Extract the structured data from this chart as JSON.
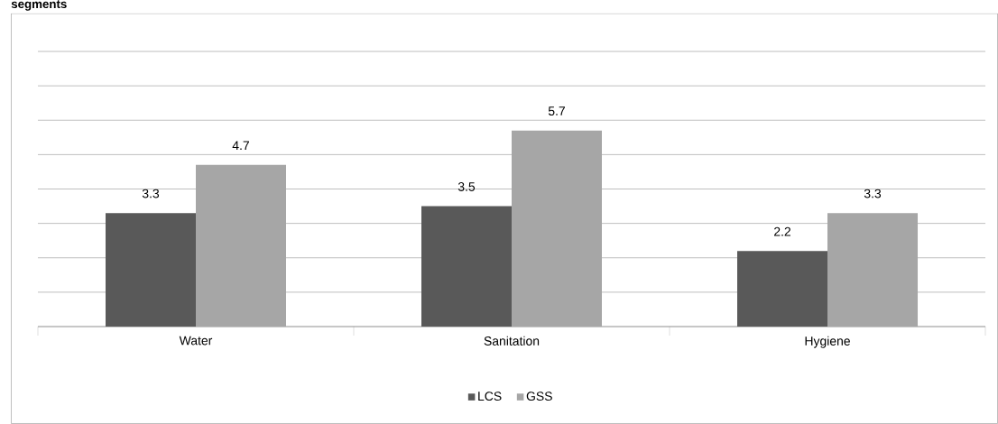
{
  "chart_data": {
    "type": "bar",
    "title": "segments",
    "categories": [
      "Water",
      "Sanitation",
      "Hygiene"
    ],
    "series": [
      {
        "name": "LCS",
        "color": "#595959",
        "values": [
          3.3,
          3.5,
          2.2
        ]
      },
      {
        "name": "GSS",
        "color": "#a6a6a6",
        "values": [
          4.7,
          5.7,
          3.3
        ]
      }
    ],
    "ylim": [
      0,
      8
    ],
    "yticks": [
      {
        "value": 0,
        "label": null
      },
      {
        "value": 1,
        "label": null
      },
      {
        "value": 2,
        "label": null
      },
      {
        "value": 3,
        "label": null
      },
      {
        "value": 4,
        "label": null
      },
      {
        "value": 5,
        "label": null
      },
      {
        "value": 6,
        "label": null
      },
      {
        "value": 7,
        "label": null
      },
      {
        "value": 8,
        "label": null
      }
    ],
    "grid": "y",
    "data_labels": true,
    "legend": "bottom",
    "tick_labels": "x"
  }
}
